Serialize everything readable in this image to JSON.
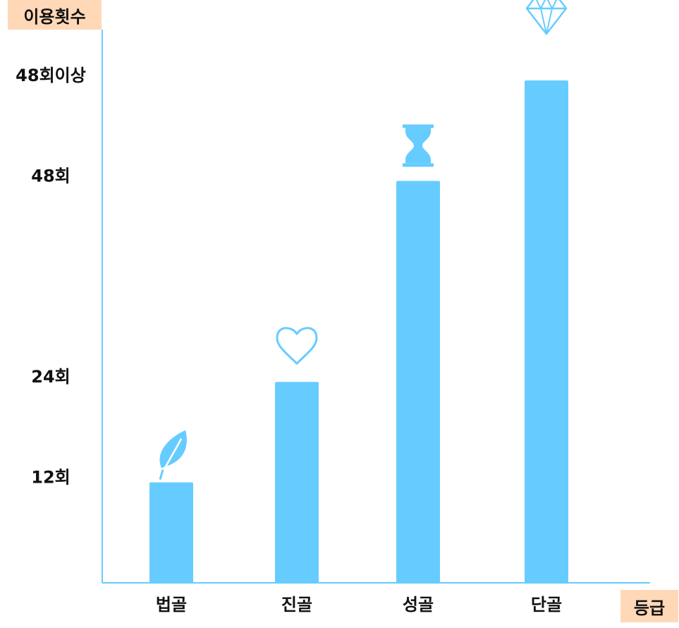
{
  "chart_data": {
    "type": "bar",
    "ylabel": "이용횟수",
    "xlabel": "등급",
    "categories": [
      "법골",
      "진골",
      "성골",
      "단골"
    ],
    "values": [
      12,
      24,
      48,
      60
    ],
    "y_ticks": [
      {
        "value": 12,
        "label": "12회"
      },
      {
        "value": 24,
        "label": "24회"
      },
      {
        "value": 48,
        "label": "48회"
      },
      {
        "value": 60,
        "label": "48회이상"
      }
    ],
    "ylim": [
      0,
      60
    ],
    "grid": false,
    "bar_color": "#66ccff",
    "axis_color": "#66ccff",
    "label_box_color": "#ffd8b8",
    "icons": [
      "leaf-icon",
      "heart-icon",
      "hourglass-icon",
      "diamond-icon"
    ]
  }
}
